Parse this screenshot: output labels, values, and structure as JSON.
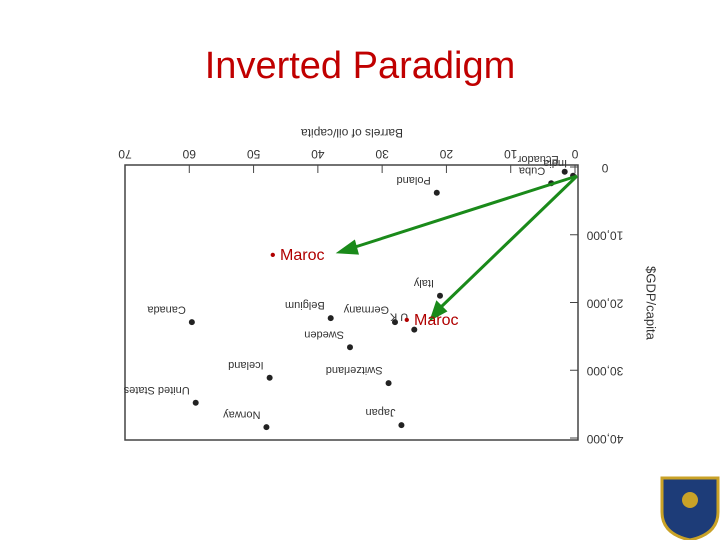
{
  "chart_data": {
    "type": "scatter",
    "title": "Inverted Paradigm",
    "x_label": "Barrels of oil/capita",
    "y_label": "$GDP/capita",
    "xlim": [
      0,
      70
    ],
    "xticks": [
      0,
      10,
      20,
      30,
      40,
      50,
      60,
      70
    ],
    "ylim": [
      0,
      40000
    ],
    "yticks": [
      {
        "value": 0,
        "label": "0"
      },
      {
        "value": 10000,
        "label": "10,000"
      },
      {
        "value": 20000,
        "label": "20,000"
      },
      {
        "value": 30000,
        "label": "30,000"
      },
      {
        "value": 40000,
        "label": "40,000"
      }
    ],
    "color": "#222222",
    "point_labels": [
      "Ecuador",
      "Cuba",
      "India",
      "Poland",
      "Italy",
      "Germany",
      "U K",
      "Belgium",
      "Sweden",
      "Canada",
      "Iceland",
      "Switzerland",
      "Japan",
      "United States",
      "Norway"
    ],
    "x": [
      1.6,
      3.7,
      0.3,
      21.5,
      21,
      28,
      25,
      38,
      35,
      59.6,
      47.5,
      29,
      27,
      59,
      48
    ],
    "values": [
      700,
      2400,
      1300,
      3800,
      19000,
      22900,
      24000,
      22300,
      26600,
      22900,
      31100,
      31900,
      38100,
      34800,
      38400
    ],
    "annotations": [
      "• Maroc",
      "• Maroc"
    ]
  }
}
